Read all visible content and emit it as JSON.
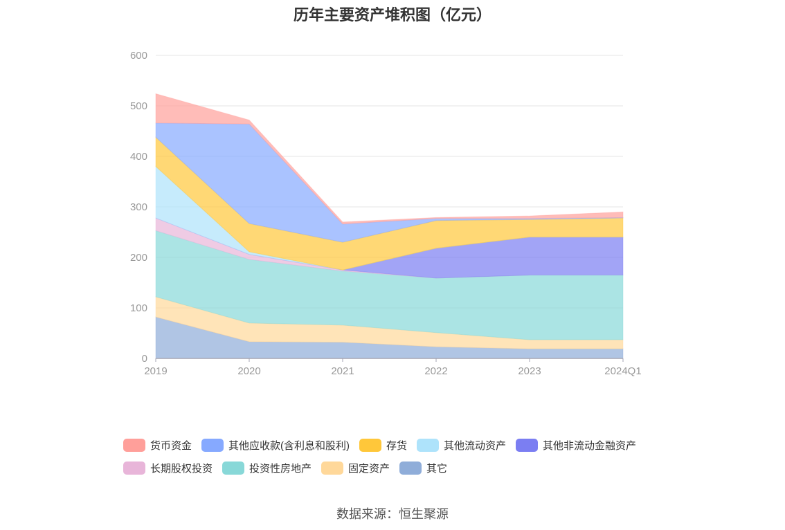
{
  "chart_data": {
    "type": "area",
    "stacked": true,
    "title": "历年主要资产堆积图（亿元）",
    "source": "数据来源：恒生聚源",
    "x": [
      "2019",
      "2020",
      "2021",
      "2022",
      "2023",
      "2024Q1"
    ],
    "y_ticks": [
      "0",
      "100",
      "200",
      "300",
      "400",
      "500",
      "600"
    ],
    "ylim": [
      0,
      600
    ],
    "grid": true,
    "legend_position": "bottom",
    "series": [
      {
        "name": "其它",
        "color": "#8fadd9",
        "values": [
          82,
          33,
          32,
          23,
          19,
          19
        ]
      },
      {
        "name": "固定资产",
        "color": "#ffd89a",
        "values": [
          40,
          37,
          34,
          28,
          18,
          18
        ]
      },
      {
        "name": "投资性房地产",
        "color": "#88d8d8",
        "values": [
          131,
          126,
          107,
          108,
          128,
          128
        ]
      },
      {
        "name": "长期股权投资",
        "color": "#e8b5d9",
        "values": [
          25,
          10,
          2,
          0,
          0,
          0
        ]
      },
      {
        "name": "其他非流动金融资产",
        "color": "#7b7ef2",
        "values": [
          0,
          0,
          0,
          59,
          75,
          75
        ]
      },
      {
        "name": "其他流动资产",
        "color": "#aee3fb",
        "values": [
          102,
          5,
          0,
          0,
          0,
          0
        ]
      },
      {
        "name": "存货",
        "color": "#ffc73a",
        "values": [
          58,
          56,
          55,
          55,
          35,
          38
        ]
      },
      {
        "name": "其他应收款(含利息和股利)",
        "color": "#86a9ff",
        "values": [
          28,
          197,
          36,
          4,
          2,
          1
        ]
      },
      {
        "name": "货币资金",
        "color": "#ff9f9a",
        "values": [
          58,
          8,
          4,
          2,
          5,
          11
        ]
      }
    ],
    "legend_rows": [
      [
        "货币资金",
        "其他应收款(含利息和股利)",
        "存货",
        "其他流动资产",
        "其他非流动金融资产"
      ],
      [
        "长期股权投资",
        "投资性房地产",
        "固定资产",
        "其它"
      ]
    ]
  }
}
